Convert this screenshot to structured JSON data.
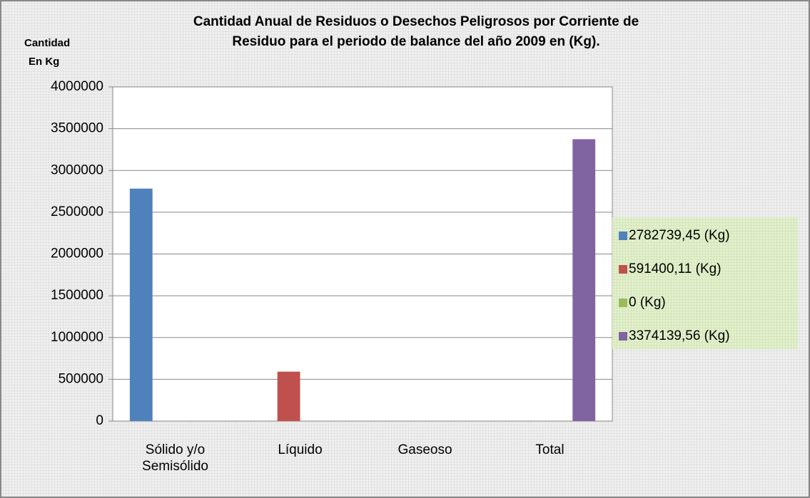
{
  "chart_data": {
    "type": "bar",
    "title": [
      "Cantidad Anual de Residuos o Desechos Peligrosos por Corriente de",
      "Residuo para el periodo de balance del año 2009 en (Kg)."
    ],
    "y_label": [
      "Cantidad",
      "En Kg"
    ],
    "categories": [
      "Sólido y/o Semisólido",
      "Líquido",
      "Gaseoso",
      "Total"
    ],
    "series": [
      {
        "name": "2782739,45 (Kg)",
        "color": "#4f81bd",
        "values": [
          2782739.45,
          null,
          null,
          null
        ]
      },
      {
        "name": "591400,11 (Kg)",
        "color": "#c0504d",
        "values": [
          null,
          591400.11,
          null,
          null
        ]
      },
      {
        "name": "0 (Kg)",
        "color": "#9bbb59",
        "values": [
          null,
          null,
          0,
          null
        ]
      },
      {
        "name": "3374139,56 (Kg)",
        "color": "#8064a2",
        "values": [
          null,
          null,
          null,
          3374139.56
        ]
      }
    ],
    "ylim": [
      0,
      4000000
    ],
    "yticks": [
      0,
      500000,
      1000000,
      1500000,
      2000000,
      2500000,
      3000000,
      3500000,
      4000000
    ],
    "grid": true,
    "legend": "right"
  }
}
